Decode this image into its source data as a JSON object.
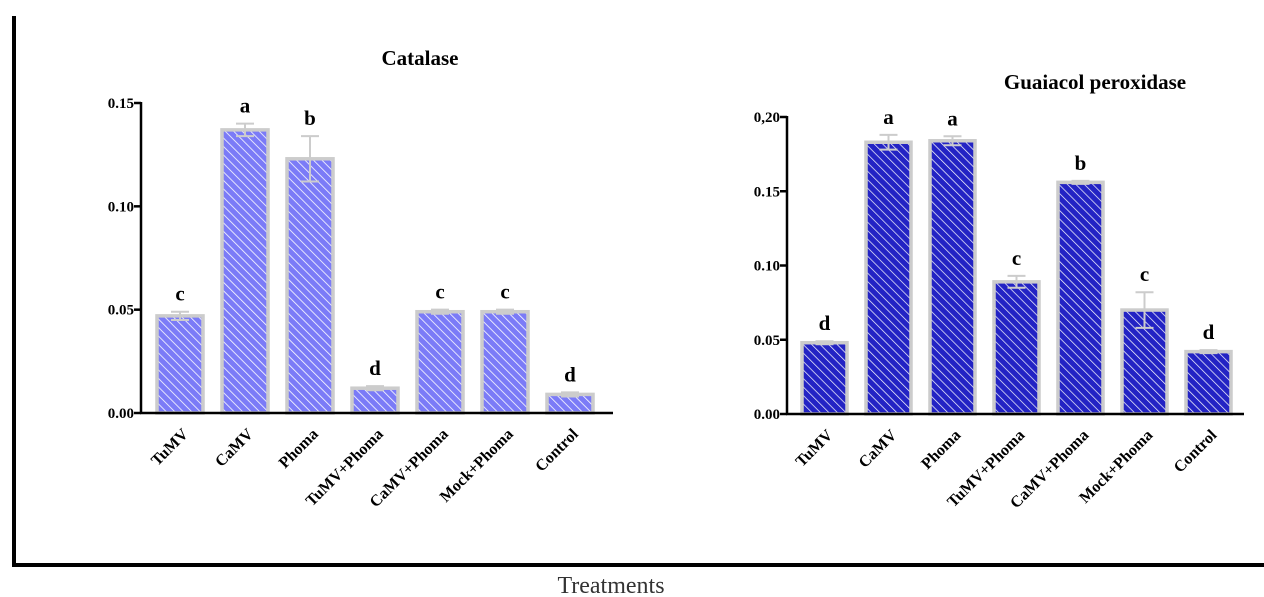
{
  "figure": {
    "xlabel": "Treatments"
  },
  "colors": {
    "catalase_fill": "#7b7bf7",
    "gpx_fill": "#2323c4",
    "bar_border": "#cccccc",
    "hatch_line": "#ffffff",
    "axis": "#000000"
  },
  "chart_data": [
    {
      "type": "bar",
      "title": "Catalase",
      "categories": [
        "TuMV",
        "CaMV",
        "Phoma",
        "TuMV+Phoma",
        "CaMV+Phoma",
        "Mock+Phoma",
        "Control"
      ],
      "values": [
        0.047,
        0.137,
        0.123,
        0.012,
        0.049,
        0.049,
        0.009
      ],
      "errors": [
        0.002,
        0.003,
        0.011,
        0.001,
        0.001,
        0.001,
        0.001
      ],
      "significance": [
        "c",
        "a",
        "b",
        "d",
        "c",
        "c",
        "d"
      ],
      "ylim": [
        0,
        0.15
      ],
      "yticks": [
        "0.00",
        "0.05",
        "0.10",
        "0.15"
      ],
      "ytick_values": [
        0,
        0.05,
        0.1,
        0.15
      ],
      "xlabel": "",
      "ylabel": "",
      "grid": false,
      "hatched": true
    },
    {
      "type": "bar",
      "title": "Guaiacol peroxidase",
      "categories": [
        "TuMV",
        "CaMV",
        "Phoma",
        "TuMV+Phoma",
        "CaMV+Phoma",
        "Mock+Phoma",
        "Control"
      ],
      "values": [
        0.048,
        0.183,
        0.184,
        0.089,
        0.156,
        0.07,
        0.042
      ],
      "errors": [
        0.001,
        0.005,
        0.003,
        0.004,
        0.001,
        0.012,
        0.001
      ],
      "significance": [
        "d",
        "a",
        "a",
        "c",
        "b",
        "c",
        "d"
      ],
      "ylim": [
        0,
        0.2
      ],
      "yticks": [
        "0.00",
        "0.05",
        "0.10",
        "0.15",
        "0,20"
      ],
      "ytick_values": [
        0,
        0.05,
        0.1,
        0.15,
        0.2
      ],
      "xlabel": "",
      "ylabel": "",
      "grid": false,
      "hatched": true
    }
  ]
}
